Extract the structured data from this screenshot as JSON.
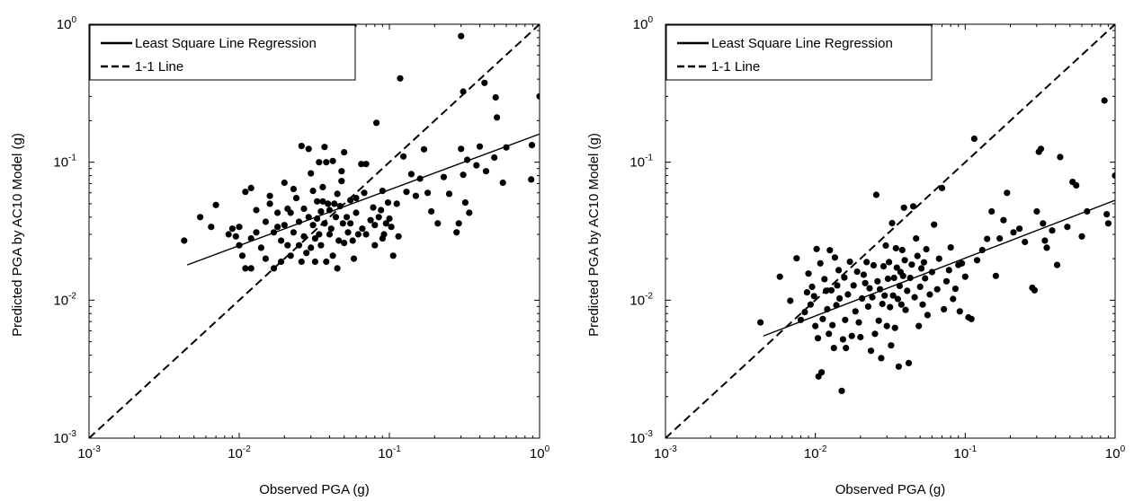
{
  "chart_data": [
    {
      "type": "scatter",
      "xlabel": "Observed PGA (g)",
      "ylabel": "Predicted PGA by AC10 Model (g)",
      "xscale": "log",
      "yscale": "log",
      "xlim": [
        0.001,
        1
      ],
      "ylim": [
        0.001,
        1
      ],
      "x_ticks": [
        {
          "base": "10",
          "exp": "-3"
        },
        {
          "base": "10",
          "exp": "-2"
        },
        {
          "base": "10",
          "exp": "-1"
        },
        {
          "base": "10",
          "exp": "0"
        }
      ],
      "y_ticks": [
        {
          "base": "10",
          "exp": "-3"
        },
        {
          "base": "10",
          "exp": "-2"
        },
        {
          "base": "10",
          "exp": "-1"
        },
        {
          "base": "10",
          "exp": "0"
        }
      ],
      "grid": false,
      "legend_position": "top-left",
      "legend": [
        {
          "label": "Least Square Line Regression",
          "style": "solid"
        },
        {
          "label": "1-1 Line",
          "style": "dashed"
        }
      ],
      "lines": [
        {
          "name": "Least Square Line Regression",
          "style": "solid",
          "x": [
            0.0045,
            1.0
          ],
          "y": [
            0.018,
            0.16
          ]
        },
        {
          "name": "1-1 Line",
          "style": "dashed",
          "x": [
            0.001,
            1.0
          ],
          "y": [
            0.001,
            1.0
          ]
        }
      ],
      "points": [
        [
          0.0043,
          0.027
        ],
        [
          0.0055,
          0.04
        ],
        [
          0.0065,
          0.034
        ],
        [
          0.007,
          0.049
        ],
        [
          0.0085,
          0.03
        ],
        [
          0.009,
          0.033
        ],
        [
          0.0095,
          0.029
        ],
        [
          0.01,
          0.025
        ],
        [
          0.01,
          0.034
        ],
        [
          0.0105,
          0.021
        ],
        [
          0.011,
          0.017
        ],
        [
          0.011,
          0.061
        ],
        [
          0.012,
          0.065
        ],
        [
          0.012,
          0.028
        ],
        [
          0.012,
          0.017
        ],
        [
          0.013,
          0.031
        ],
        [
          0.013,
          0.045
        ],
        [
          0.014,
          0.024
        ],
        [
          0.015,
          0.037
        ],
        [
          0.015,
          0.02
        ],
        [
          0.016,
          0.05
        ],
        [
          0.016,
          0.057
        ],
        [
          0.017,
          0.031
        ],
        [
          0.017,
          0.017
        ],
        [
          0.018,
          0.034
        ],
        [
          0.018,
          0.043
        ],
        [
          0.019,
          0.027
        ],
        [
          0.019,
          0.019
        ],
        [
          0.02,
          0.071
        ],
        [
          0.02,
          0.035
        ],
        [
          0.021,
          0.025
        ],
        [
          0.021,
          0.046
        ],
        [
          0.022,
          0.021
        ],
        [
          0.022,
          0.043
        ],
        [
          0.023,
          0.031
        ],
        [
          0.023,
          0.064
        ],
        [
          0.024,
          0.055
        ],
        [
          0.025,
          0.037
        ],
        [
          0.025,
          0.025
        ],
        [
          0.026,
          0.019
        ],
        [
          0.026,
          0.131
        ],
        [
          0.027,
          0.029
        ],
        [
          0.027,
          0.046
        ],
        [
          0.028,
          0.022
        ],
        [
          0.029,
          0.04
        ],
        [
          0.029,
          0.125
        ],
        [
          0.03,
          0.024
        ],
        [
          0.03,
          0.083
        ],
        [
          0.031,
          0.062
        ],
        [
          0.031,
          0.035
        ],
        [
          0.032,
          0.028
        ],
        [
          0.032,
          0.019
        ],
        [
          0.033,
          0.052
        ],
        [
          0.033,
          0.039
        ],
        [
          0.034,
          0.1
        ],
        [
          0.034,
          0.03
        ],
        [
          0.035,
          0.044
        ],
        [
          0.035,
          0.025
        ],
        [
          0.036,
          0.052
        ],
        [
          0.036,
          0.066
        ],
        [
          0.037,
          0.129
        ],
        [
          0.037,
          0.036
        ],
        [
          0.038,
          0.019
        ],
        [
          0.038,
          0.1
        ],
        [
          0.039,
          0.05
        ],
        [
          0.04,
          0.045
        ],
        [
          0.04,
          0.03
        ],
        [
          0.041,
          0.033
        ],
        [
          0.042,
          0.102
        ],
        [
          0.042,
          0.021
        ],
        [
          0.043,
          0.05
        ],
        [
          0.044,
          0.04
        ],
        [
          0.045,
          0.017
        ],
        [
          0.045,
          0.059
        ],
        [
          0.046,
          0.027
        ],
        [
          0.047,
          0.048
        ],
        [
          0.048,
          0.073
        ],
        [
          0.048,
          0.086
        ],
        [
          0.049,
          0.036
        ],
        [
          0.05,
          0.026
        ],
        [
          0.05,
          0.118
        ],
        [
          0.052,
          0.04
        ],
        [
          0.053,
          0.031
        ],
        [
          0.055,
          0.053
        ],
        [
          0.055,
          0.036
        ],
        [
          0.057,
          0.027
        ],
        [
          0.058,
          0.02
        ],
        [
          0.06,
          0.043
        ],
        [
          0.06,
          0.055
        ],
        [
          0.062,
          0.03
        ],
        [
          0.065,
          0.097
        ],
        [
          0.066,
          0.033
        ],
        [
          0.068,
          0.06
        ],
        [
          0.07,
          0.097
        ],
        [
          0.07,
          0.03
        ],
        [
          0.075,
          0.038
        ],
        [
          0.078,
          0.047
        ],
        [
          0.08,
          0.035
        ],
        [
          0.08,
          0.025
        ],
        [
          0.082,
          0.193
        ],
        [
          0.085,
          0.04
        ],
        [
          0.088,
          0.045
        ],
        [
          0.09,
          0.028
        ],
        [
          0.09,
          0.062
        ],
        [
          0.092,
          0.03
        ],
        [
          0.095,
          0.036
        ],
        [
          0.098,
          0.051
        ],
        [
          0.1,
          0.039
        ],
        [
          0.103,
          0.034
        ],
        [
          0.106,
          0.021
        ],
        [
          0.112,
          0.05
        ],
        [
          0.115,
          0.029
        ],
        [
          0.118,
          0.405
        ],
        [
          0.124,
          0.11
        ],
        [
          0.13,
          0.061
        ],
        [
          0.14,
          0.082
        ],
        [
          0.15,
          0.057
        ],
        [
          0.16,
          0.076
        ],
        [
          0.17,
          0.124
        ],
        [
          0.18,
          0.06
        ],
        [
          0.19,
          0.044
        ],
        [
          0.21,
          0.036
        ],
        [
          0.23,
          0.078
        ],
        [
          0.25,
          0.059
        ],
        [
          0.28,
          0.031
        ],
        [
          0.29,
          0.036
        ],
        [
          0.3,
          0.821
        ],
        [
          0.3,
          0.125
        ],
        [
          0.31,
          0.081
        ],
        [
          0.31,
          0.325
        ],
        [
          0.32,
          0.051
        ],
        [
          0.33,
          0.104
        ],
        [
          0.34,
          0.043
        ],
        [
          0.38,
          0.095
        ],
        [
          0.4,
          0.13
        ],
        [
          0.43,
          0.376
        ],
        [
          0.44,
          0.086
        ],
        [
          0.5,
          0.108
        ],
        [
          0.51,
          0.295
        ],
        [
          0.52,
          0.211
        ],
        [
          0.57,
          0.071
        ],
        [
          0.6,
          0.128
        ],
        [
          0.88,
          0.075
        ],
        [
          0.89,
          0.133
        ],
        [
          1.0,
          0.3
        ]
      ]
    },
    {
      "type": "scatter",
      "xlabel": "Observed PGA (g)",
      "ylabel": "Predicted PGA by AC10 Model (g)",
      "xscale": "log",
      "yscale": "log",
      "xlim": [
        0.001,
        1
      ],
      "ylim": [
        0.001,
        1
      ],
      "x_ticks": [
        {
          "base": "10",
          "exp": "-3"
        },
        {
          "base": "10",
          "exp": "-2"
        },
        {
          "base": "10",
          "exp": "-1"
        },
        {
          "base": "10",
          "exp": "0"
        }
      ],
      "y_ticks": [
        {
          "base": "10",
          "exp": "-3"
        },
        {
          "base": "10",
          "exp": "-2"
        },
        {
          "base": "10",
          "exp": "-1"
        },
        {
          "base": "10",
          "exp": "0"
        }
      ],
      "grid": false,
      "legend_position": "top-left",
      "legend": [
        {
          "label": "Least Square Line Regression",
          "style": "solid"
        },
        {
          "label": "1-1 Line",
          "style": "dashed"
        }
      ],
      "lines": [
        {
          "name": "Least Square Line Regression",
          "style": "solid",
          "x": [
            0.0045,
            1.0
          ],
          "y": [
            0.0055,
            0.053
          ]
        },
        {
          "name": "1-1 Line",
          "style": "dashed",
          "x": [
            0.001,
            1.0
          ],
          "y": [
            0.001,
            1.0
          ]
        }
      ],
      "points": [
        [
          0.0043,
          0.0069
        ],
        [
          0.0058,
          0.0148
        ],
        [
          0.0068,
          0.0099
        ],
        [
          0.0075,
          0.0201
        ],
        [
          0.008,
          0.0072
        ],
        [
          0.0085,
          0.0082
        ],
        [
          0.0088,
          0.0114
        ],
        [
          0.009,
          0.0156
        ],
        [
          0.0093,
          0.0093
        ],
        [
          0.0095,
          0.0125
        ],
        [
          0.0098,
          0.0107
        ],
        [
          0.01,
          0.0065
        ],
        [
          0.0102,
          0.0235
        ],
        [
          0.0104,
          0.0053
        ],
        [
          0.0105,
          0.0028
        ],
        [
          0.0108,
          0.0185
        ],
        [
          0.011,
          0.003
        ],
        [
          0.0112,
          0.0073
        ],
        [
          0.0115,
          0.0142
        ],
        [
          0.0118,
          0.0117
        ],
        [
          0.012,
          0.0086
        ],
        [
          0.0123,
          0.0057
        ],
        [
          0.0125,
          0.023
        ],
        [
          0.0128,
          0.0118
        ],
        [
          0.013,
          0.0066
        ],
        [
          0.0133,
          0.0045
        ],
        [
          0.0135,
          0.0204
        ],
        [
          0.0138,
          0.0092
        ],
        [
          0.014,
          0.0128
        ],
        [
          0.0143,
          0.0165
        ],
        [
          0.0145,
          0.0103
        ],
        [
          0.015,
          0.0022
        ],
        [
          0.0153,
          0.0052
        ],
        [
          0.0156,
          0.0146
        ],
        [
          0.0158,
          0.0072
        ],
        [
          0.016,
          0.0045
        ],
        [
          0.0165,
          0.011
        ],
        [
          0.017,
          0.019
        ],
        [
          0.0175,
          0.0055
        ],
        [
          0.018,
          0.0128
        ],
        [
          0.0185,
          0.0083
        ],
        [
          0.019,
          0.0161
        ],
        [
          0.0195,
          0.0069
        ],
        [
          0.02,
          0.0054
        ],
        [
          0.0205,
          0.0103
        ],
        [
          0.021,
          0.0153
        ],
        [
          0.0215,
          0.0133
        ],
        [
          0.022,
          0.0189
        ],
        [
          0.0225,
          0.009
        ],
        [
          0.023,
          0.0122
        ],
        [
          0.0235,
          0.0043
        ],
        [
          0.024,
          0.0105
        ],
        [
          0.0245,
          0.0179
        ],
        [
          0.025,
          0.0057
        ],
        [
          0.0255,
          0.058
        ],
        [
          0.026,
          0.0137
        ],
        [
          0.0265,
          0.0071
        ],
        [
          0.027,
          0.012
        ],
        [
          0.0275,
          0.0038
        ],
        [
          0.028,
          0.0094
        ],
        [
          0.0285,
          0.0176
        ],
        [
          0.029,
          0.0108
        ],
        [
          0.0295,
          0.0249
        ],
        [
          0.03,
          0.0065
        ],
        [
          0.0305,
          0.0143
        ],
        [
          0.031,
          0.0189
        ],
        [
          0.0315,
          0.0089
        ],
        [
          0.032,
          0.0047
        ],
        [
          0.0325,
          0.0362
        ],
        [
          0.033,
          0.0108
        ],
        [
          0.0335,
          0.0145
        ],
        [
          0.034,
          0.0063
        ],
        [
          0.0345,
          0.0238
        ],
        [
          0.035,
          0.0172
        ],
        [
          0.0355,
          0.0102
        ],
        [
          0.036,
          0.0033
        ],
        [
          0.0365,
          0.0127
        ],
        [
          0.037,
          0.016
        ],
        [
          0.0375,
          0.0093
        ],
        [
          0.038,
          0.0231
        ],
        [
          0.0385,
          0.015
        ],
        [
          0.039,
          0.0468
        ],
        [
          0.0395,
          0.0195
        ],
        [
          0.04,
          0.0085
        ],
        [
          0.041,
          0.0117
        ],
        [
          0.042,
          0.0035
        ],
        [
          0.043,
          0.0145
        ],
        [
          0.044,
          0.0181
        ],
        [
          0.045,
          0.0479
        ],
        [
          0.046,
          0.0105
        ],
        [
          0.047,
          0.028
        ],
        [
          0.048,
          0.0209
        ],
        [
          0.049,
          0.0065
        ],
        [
          0.05,
          0.0125
        ],
        [
          0.051,
          0.017
        ],
        [
          0.052,
          0.0093
        ],
        [
          0.053,
          0.0188
        ],
        [
          0.054,
          0.0144
        ],
        [
          0.055,
          0.0234
        ],
        [
          0.056,
          0.0078
        ],
        [
          0.058,
          0.011
        ],
        [
          0.06,
          0.016
        ],
        [
          0.062,
          0.0353
        ],
        [
          0.065,
          0.012
        ],
        [
          0.067,
          0.02
        ],
        [
          0.07,
          0.065
        ],
        [
          0.072,
          0.0086
        ],
        [
          0.075,
          0.0137
        ],
        [
          0.078,
          0.0165
        ],
        [
          0.08,
          0.0241
        ],
        [
          0.083,
          0.0102
        ],
        [
          0.086,
          0.0121
        ],
        [
          0.09,
          0.018
        ],
        [
          0.092,
          0.0083
        ],
        [
          0.095,
          0.0185
        ],
        [
          0.1,
          0.0148
        ],
        [
          0.105,
          0.0075
        ],
        [
          0.11,
          0.0073
        ],
        [
          0.115,
          0.148
        ],
        [
          0.12,
          0.0195
        ],
        [
          0.13,
          0.0231
        ],
        [
          0.14,
          0.0278
        ],
        [
          0.15,
          0.044
        ],
        [
          0.16,
          0.015
        ],
        [
          0.17,
          0.028
        ],
        [
          0.18,
          0.038
        ],
        [
          0.19,
          0.06
        ],
        [
          0.21,
          0.031
        ],
        [
          0.23,
          0.033
        ],
        [
          0.25,
          0.0264
        ],
        [
          0.28,
          0.0123
        ],
        [
          0.29,
          0.0118
        ],
        [
          0.3,
          0.044
        ],
        [
          0.31,
          0.119
        ],
        [
          0.32,
          0.125
        ],
        [
          0.33,
          0.036
        ],
        [
          0.34,
          0.027
        ],
        [
          0.35,
          0.024
        ],
        [
          0.38,
          0.032
        ],
        [
          0.41,
          0.018
        ],
        [
          0.43,
          0.109
        ],
        [
          0.48,
          0.034
        ],
        [
          0.52,
          0.072
        ],
        [
          0.55,
          0.068
        ],
        [
          0.6,
          0.029
        ],
        [
          0.65,
          0.044
        ],
        [
          0.85,
          0.28
        ],
        [
          0.88,
          0.042
        ],
        [
          0.9,
          0.036
        ],
        [
          1.0,
          0.08
        ]
      ]
    }
  ]
}
